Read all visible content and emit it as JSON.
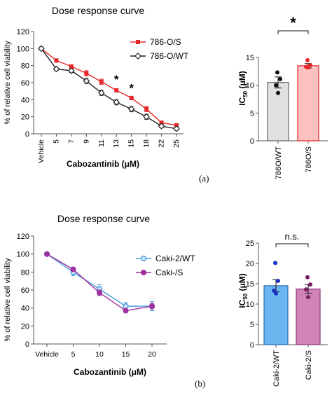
{
  "chart_data": [
    {
      "id": "a_curve",
      "type": "line",
      "title": "Dose response curve",
      "xlabel": "Cabozantinib (μM)",
      "ylabel": "% of relative cell viability",
      "categories": [
        "Vehicle",
        "5",
        "7",
        "9",
        "11",
        "13",
        "15",
        "18",
        "22",
        "25"
      ],
      "ylim": [
        0,
        120
      ],
      "yticks": [
        "0",
        "20",
        "40",
        "60",
        "80",
        "100",
        "120"
      ],
      "legend_position": "top-right",
      "series": [
        {
          "name": "786-O/S",
          "color": "#e8272b",
          "marker": "square",
          "values": [
            100,
            86,
            79,
            71,
            61,
            51,
            42,
            29,
            13,
            10
          ],
          "errors": [
            1,
            2,
            2,
            3,
            3,
            2,
            2,
            3,
            2,
            2
          ]
        },
        {
          "name": "786-O/WT",
          "color": "#222222",
          "marker": "diamond",
          "values": [
            100,
            76,
            74,
            62,
            48,
            37,
            29,
            20,
            9,
            6
          ],
          "errors": [
            1,
            2,
            2,
            3,
            3,
            3,
            3,
            3,
            2,
            2
          ]
        }
      ],
      "annotations": [
        {
          "text": "*",
          "category_index": 5,
          "y": 59
        },
        {
          "text": "*",
          "category_index": 6,
          "y": 49
        }
      ]
    },
    {
      "id": "a_bar",
      "type": "bar",
      "ylabel_main": "IC",
      "ylabel_sub": "50",
      "ylabel_unit": " (μM)",
      "categories": [
        "786O/WT",
        "786O/S"
      ],
      "values": [
        10.5,
        13.5
      ],
      "errors": [
        1.0,
        0.4
      ],
      "colors": [
        "#e1e1e1",
        "#ffc0c0"
      ],
      "edge_colors": [
        "#666666",
        "#e8272b"
      ],
      "point_colors": [
        "#111111",
        "#e8272b"
      ],
      "points": [
        [
          12.3,
          11.1,
          10.0,
          8.6
        ],
        [
          14.5,
          13.6,
          13.3,
          13.2
        ]
      ],
      "ylim": [
        0,
        15
      ],
      "yticks": [
        "0",
        "5",
        "10",
        "15"
      ],
      "significance": "*"
    },
    {
      "id": "b_curve",
      "type": "line",
      "title": "Dose response curve",
      "xlabel": "Cabozantinib (μM)",
      "ylabel": "% of relative cell viability",
      "categories": [
        "Vehicle",
        "5",
        "10",
        "15",
        "20"
      ],
      "ylim": [
        0,
        120
      ],
      "yticks": [
        "0",
        "20",
        "40",
        "60",
        "80",
        "100",
        "120"
      ],
      "legend_position": "top-right",
      "series": [
        {
          "name": "Caki-2/WT",
          "color": "#3f95d9",
          "marker": "circle-open",
          "values": [
            100,
            80,
            61,
            42,
            42
          ],
          "errors": [
            1,
            4,
            5,
            4,
            5
          ]
        },
        {
          "name": "Caki-/S",
          "color": "#a030a0",
          "marker": "circle",
          "values": [
            100,
            83,
            57,
            37,
            42
          ],
          "errors": [
            1,
            2,
            3,
            2,
            3
          ]
        }
      ]
    },
    {
      "id": "b_bar",
      "type": "bar",
      "ylabel_main": "IC",
      "ylabel_sub": "50",
      "ylabel_unit": " (μM)",
      "categories": [
        "Caki-2/WT",
        "Caki-2/S"
      ],
      "values": [
        14.5,
        13.7
      ],
      "errors": [
        1.5,
        1.1
      ],
      "colors": [
        "#6bb8f0",
        "#d183b5"
      ],
      "edge_colors": [
        "#2a68b8",
        "#8a3a78"
      ],
      "point_colors": [
        "#1b2fc4",
        "#7a1c5e"
      ],
      "points": [
        [
          20.1,
          15.7,
          13.3,
          12.6
        ],
        [
          16.6,
          14.8,
          13.6,
          11.7
        ]
      ],
      "ylim": [
        0,
        25
      ],
      "yticks": [
        "0",
        "5",
        "10",
        "15",
        "20",
        "25"
      ],
      "significance": "n.s."
    }
  ],
  "panel_labels": {
    "a": "(a)",
    "b": "(b)"
  }
}
